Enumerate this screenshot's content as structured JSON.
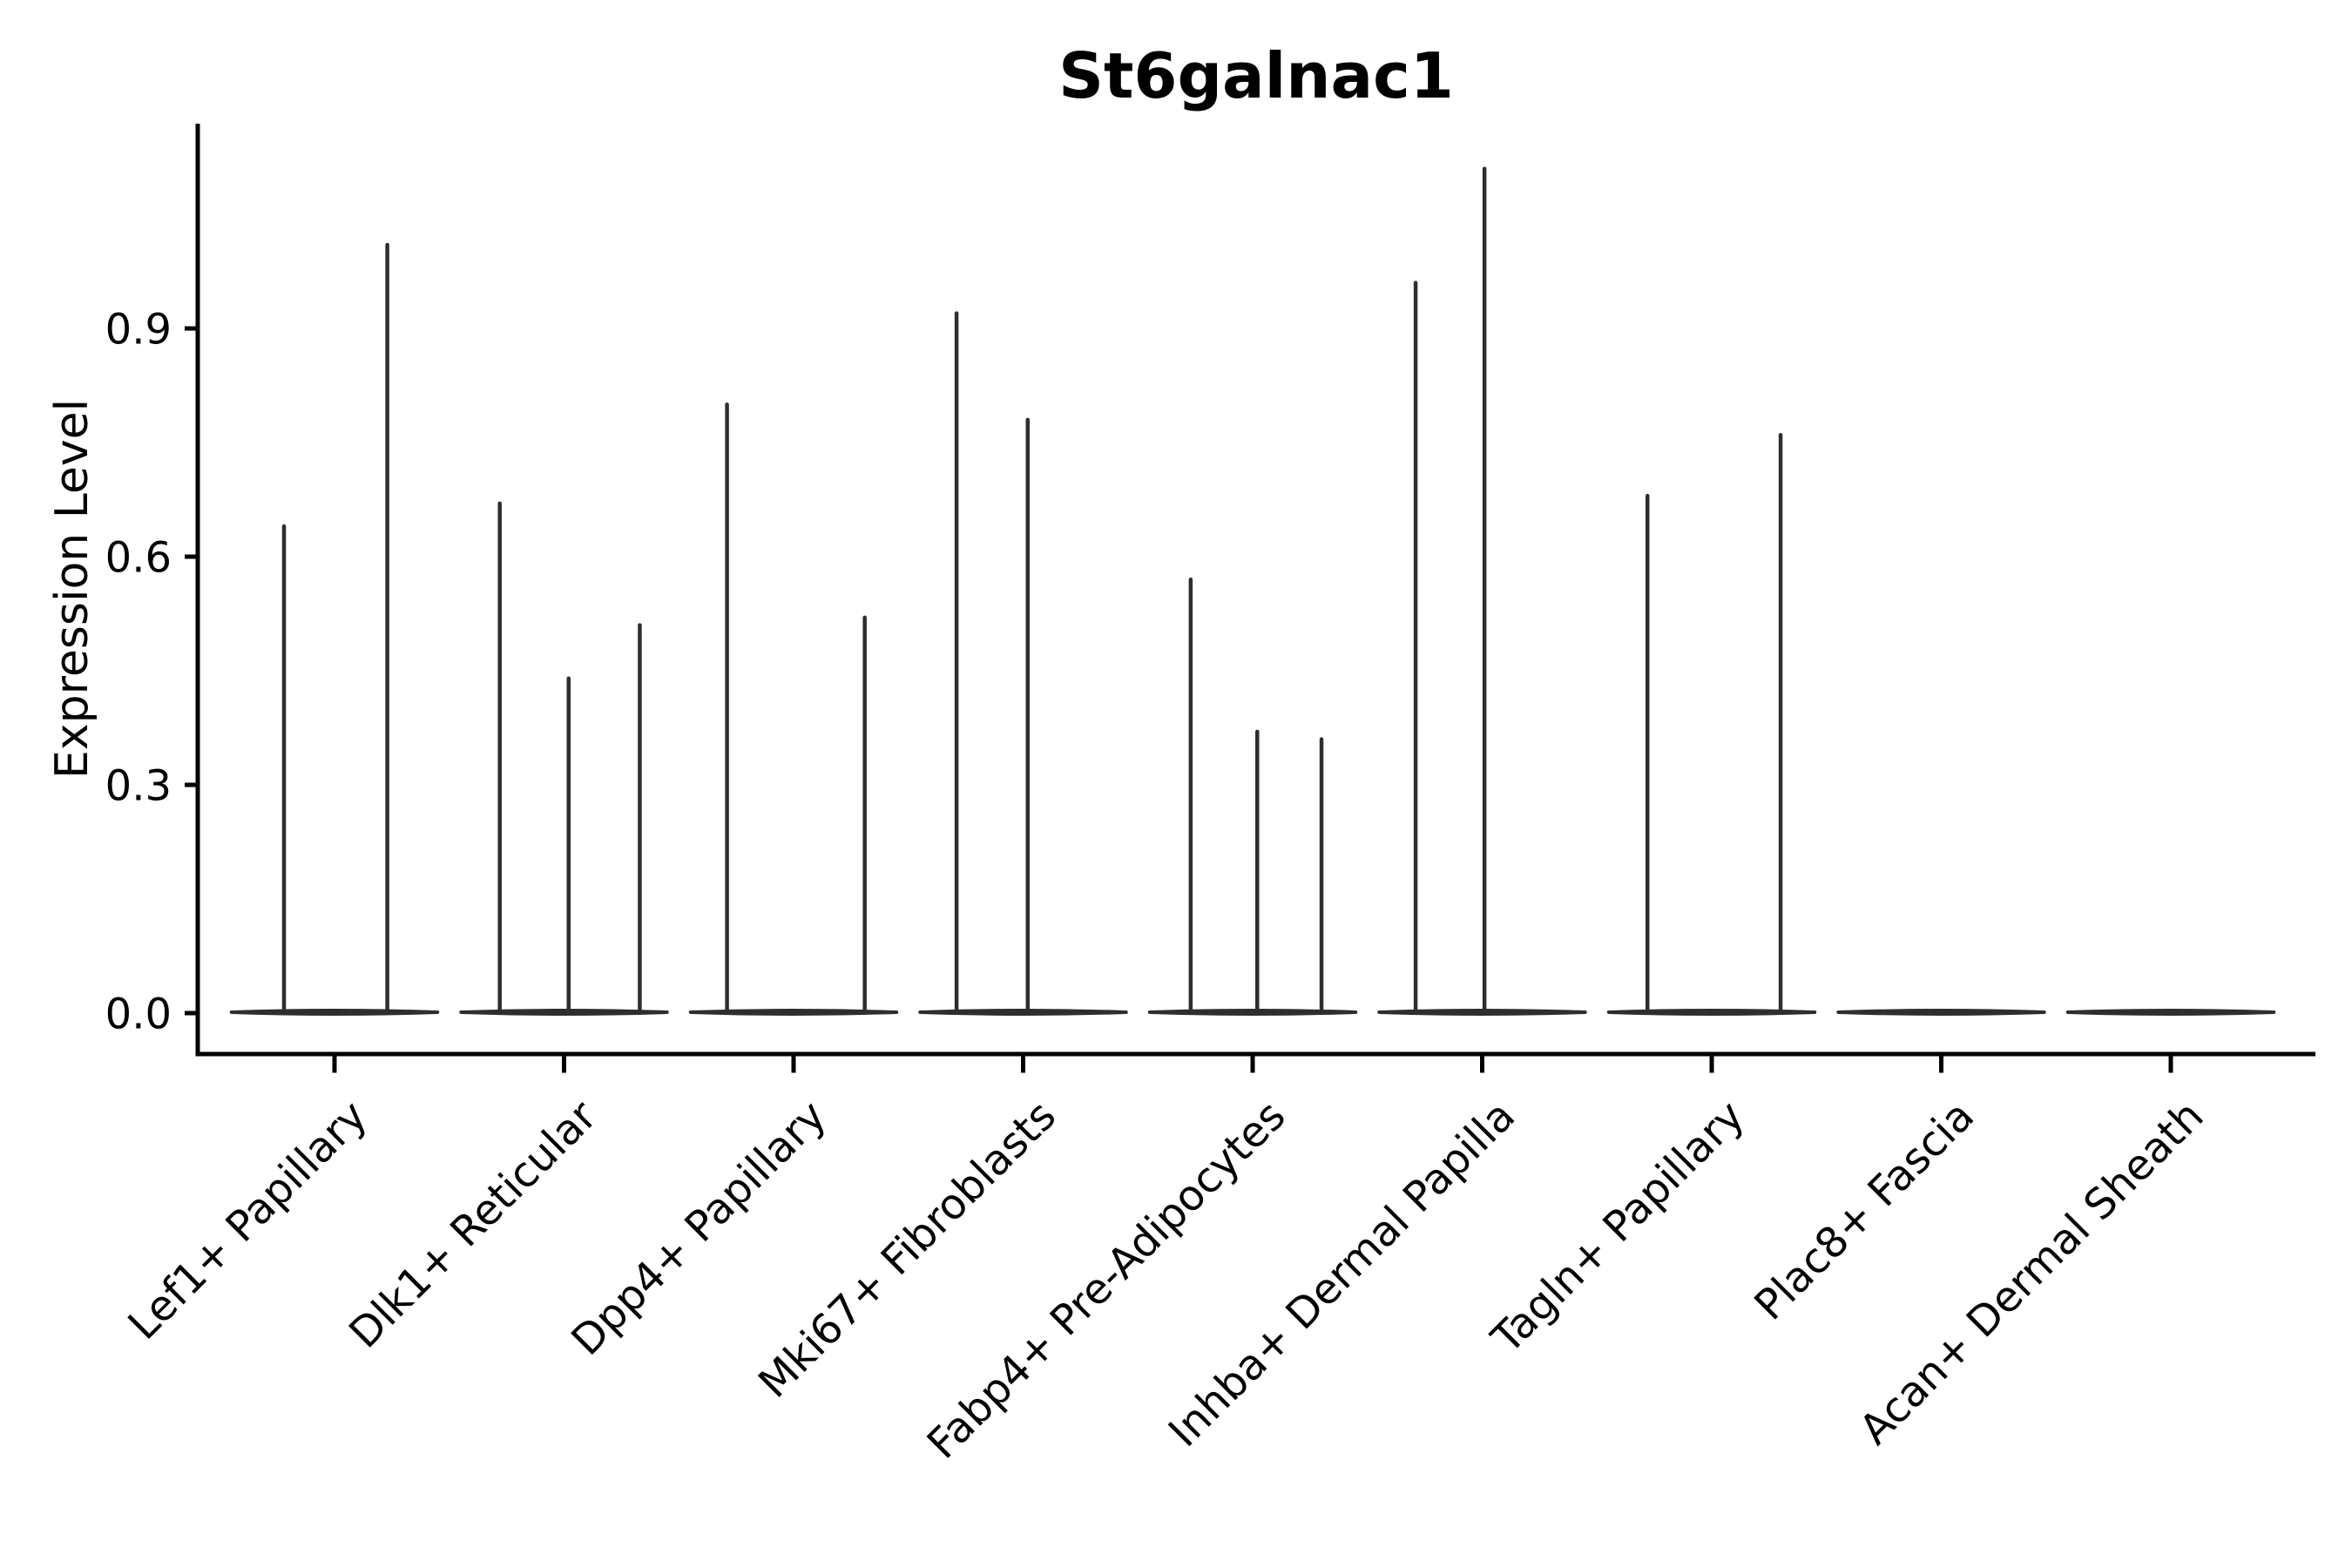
{
  "title": "St6galnac1",
  "chart_data": {
    "type": "violin",
    "title": "St6galnac1",
    "xlabel": "",
    "ylabel": "Expression Level",
    "ylim": [
      -0.06,
      1.17
    ],
    "grid": false,
    "legend": false,
    "axis_color": "#000000",
    "violin_color": "#2e2e2e",
    "background_color": "#ffffff",
    "yticks": [
      {
        "label": "0.0",
        "value": 0.0
      },
      {
        "label": "0.3",
        "value": 0.3
      },
      {
        "label": "0.6",
        "value": 0.6
      },
      {
        "label": "0.9",
        "value": 0.9
      }
    ],
    "categories": [
      "Lef1+ Papillary",
      "Dlk1+ Reticular",
      "Dpp4+ Papillary",
      "Mki67+ Fibroblasts",
      "Fabp4+ Pre-Adipocytes",
      "Inhba+ Dermal Papilla",
      "Tagln+ Papillary",
      "Plac8+ Fascia",
      "Acan+ Dermal Sheath"
    ],
    "baseline_halfwidth": 0.46,
    "violins": [
      {
        "category": "Lef1+ Papillary",
        "spikes": [
          {
            "offset": -0.22,
            "peak": 0.64
          },
          {
            "offset": 0.23,
            "peak": 1.01
          }
        ]
      },
      {
        "category": "Dlk1+ Reticular",
        "spikes": [
          {
            "offset": -0.28,
            "peak": 0.67
          },
          {
            "offset": 0.02,
            "peak": 0.44
          },
          {
            "offset": 0.33,
            "peak": 0.51
          }
        ]
      },
      {
        "category": "Dpp4+ Papillary",
        "spikes": [
          {
            "offset": -0.29,
            "peak": 0.8
          },
          {
            "offset": 0.31,
            "peak": 0.52
          }
        ]
      },
      {
        "category": "Mki67+ Fibroblasts",
        "spikes": [
          {
            "offset": -0.29,
            "peak": 0.92
          },
          {
            "offset": 0.02,
            "peak": 0.78
          }
        ]
      },
      {
        "category": "Fabp4+ Pre-Adipocytes",
        "spikes": [
          {
            "offset": -0.27,
            "peak": 0.57
          },
          {
            "offset": 0.02,
            "peak": 0.37
          },
          {
            "offset": 0.3,
            "peak": 0.36
          }
        ]
      },
      {
        "category": "Inhba+ Dermal Papilla",
        "spikes": [
          {
            "offset": -0.29,
            "peak": 0.96
          },
          {
            "offset": 0.01,
            "peak": 1.11
          }
        ]
      },
      {
        "category": "Tagln+ Papillary",
        "spikes": [
          {
            "offset": -0.28,
            "peak": 0.68
          },
          {
            "offset": 0.3,
            "peak": 0.76
          }
        ]
      },
      {
        "category": "Plac8+ Fascia",
        "spikes": []
      },
      {
        "category": "Acan+ Dermal Sheath",
        "spikes": []
      }
    ]
  }
}
